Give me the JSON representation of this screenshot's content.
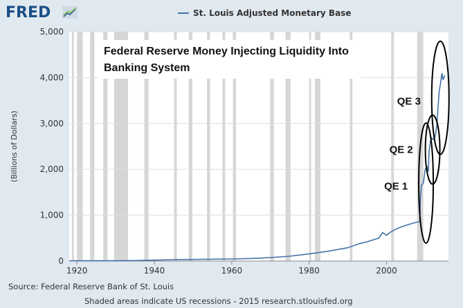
{
  "header": {
    "logo_text": "FRED",
    "legend_label": "St. Louis Adjusted Monetary Base"
  },
  "footer": {
    "source": "Source: Federal Reserve Bank of St. Louis",
    "note": "Shaded areas indicate US recessions - 2015 research.stlouisfed.org"
  },
  "colors": {
    "background": "#e1e9f0",
    "plot_background": "#ffffff",
    "series": "#4572a7",
    "recession": "#d6d6d6",
    "grid": "#dddddd"
  },
  "chart_data": {
    "type": "line",
    "title": "",
    "xlabel": "",
    "ylabel": "(Billions of Dollars)",
    "xlim": [
      1918,
      2016
    ],
    "ylim": [
      0,
      5000
    ],
    "x_ticks": [
      1920,
      1940,
      1960,
      1980,
      2000
    ],
    "y_ticks": [
      0,
      1000,
      2000,
      3000,
      4000,
      5000
    ],
    "y_tick_labels": [
      "0",
      "1,000",
      "2,000",
      "3,000",
      "4,000",
      "5,000"
    ],
    "grid": true,
    "legend": "top",
    "series": [
      {
        "name": "St. Louis Adjusted Monetary Base",
        "x": [
          1918,
          1920,
          1925,
          1930,
          1935,
          1940,
          1945,
          1950,
          1955,
          1960,
          1965,
          1970,
          1975,
          1980,
          1985,
          1990,
          1993,
          1995,
          1998,
          1999,
          2000,
          2001,
          2003,
          2005,
          2007,
          2008.6,
          2008.75,
          2009,
          2009.5,
          2010,
          2010.5,
          2010.8,
          2011,
          2011.5,
          2012,
          2012.5,
          2013,
          2013.3,
          2013.6,
          2014,
          2014.3,
          2014.6,
          2015
        ],
        "y": [
          5,
          6,
          6,
          6,
          10,
          20,
          30,
          35,
          40,
          45,
          55,
          75,
          105,
          155,
          215,
          290,
          380,
          420,
          500,
          620,
          560,
          630,
          720,
          780,
          830,
          860,
          1400,
          1650,
          1700,
          2000,
          2050,
          1950,
          2400,
          2700,
          2650,
          2700,
          2950,
          3350,
          3700,
          3900,
          4100,
          3950,
          4050
        ]
      }
    ],
    "recessions": [
      [
        1918.7,
        1919.2
      ],
      [
        1920.0,
        1921.5
      ],
      [
        1923.4,
        1924.5
      ],
      [
        1926.8,
        1927.9
      ],
      [
        1929.6,
        1933.2
      ],
      [
        1937.4,
        1938.5
      ],
      [
        1945.1,
        1945.8
      ],
      [
        1948.9,
        1949.8
      ],
      [
        1953.6,
        1954.4
      ],
      [
        1957.6,
        1958.3
      ],
      [
        1960.3,
        1961.1
      ],
      [
        1969.9,
        1970.9
      ],
      [
        1973.9,
        1975.2
      ],
      [
        1980.0,
        1980.5
      ],
      [
        1981.5,
        1982.9
      ],
      [
        1990.5,
        1991.2
      ],
      [
        2001.2,
        2001.9
      ],
      [
        2007.9,
        2009.5
      ]
    ],
    "annotations": {
      "title_lines": [
        "Federal Reserve Money Injecting Liquidity Into",
        "Banking System"
      ],
      "qe": [
        {
          "label": "QE 1",
          "x": 2010.0,
          "y": 1650
        },
        {
          "label": "QE 2",
          "x": 2011.8,
          "y": 2450
        },
        {
          "label": "QE 3",
          "x": 2014.0,
          "y": 3500
        }
      ]
    }
  }
}
